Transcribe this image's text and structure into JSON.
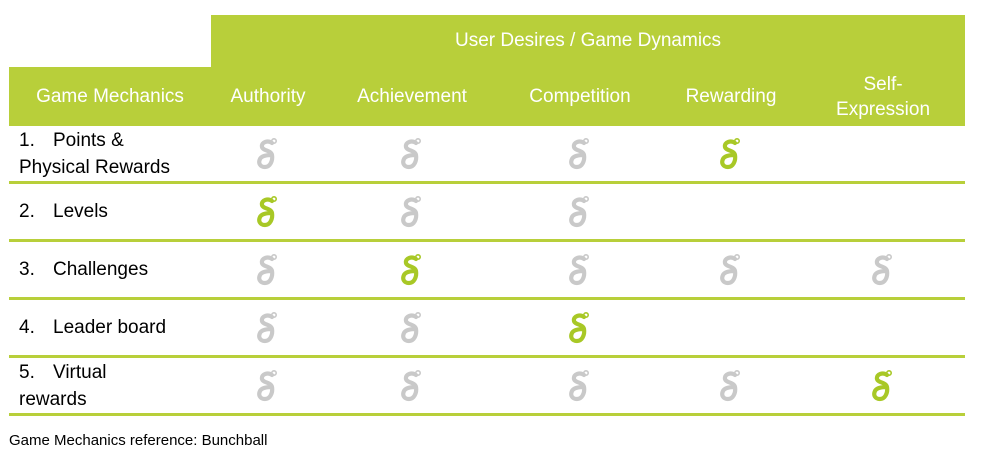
{
  "table": {
    "super_header": "User Desires / Game Dynamics",
    "corner_header": "Game Mechanics",
    "columns": [
      "Authority",
      "Achievement",
      "Competition",
      "Rewarding",
      "Self-Expression"
    ],
    "rows": [
      {
        "number": "1.",
        "label": "Points & Physical Rewards",
        "cells": [
          "grey",
          "grey",
          "grey",
          "green",
          ""
        ]
      },
      {
        "number": "2.",
        "label": "Levels",
        "cells": [
          "green",
          "grey",
          "grey",
          "",
          ""
        ]
      },
      {
        "number": "3.",
        "label": "Challenges",
        "cells": [
          "grey",
          "green",
          "grey",
          "grey",
          "grey"
        ]
      },
      {
        "number": "4.",
        "label": "Leader board",
        "cells": [
          "grey",
          "grey",
          "green",
          "",
          ""
        ]
      },
      {
        "number": "5.",
        "label": "Virtual rewards",
        "cells": [
          "grey",
          "grey",
          "grey",
          "grey",
          "green"
        ]
      }
    ]
  },
  "icon": "bunchball-g-icon",
  "colors": {
    "accent_green": "#b8cf3a",
    "icon_green": "#a8c826",
    "icon_grey": "#c9c9c9"
  },
  "caption": "Game Mechanics reference: Bunchball"
}
